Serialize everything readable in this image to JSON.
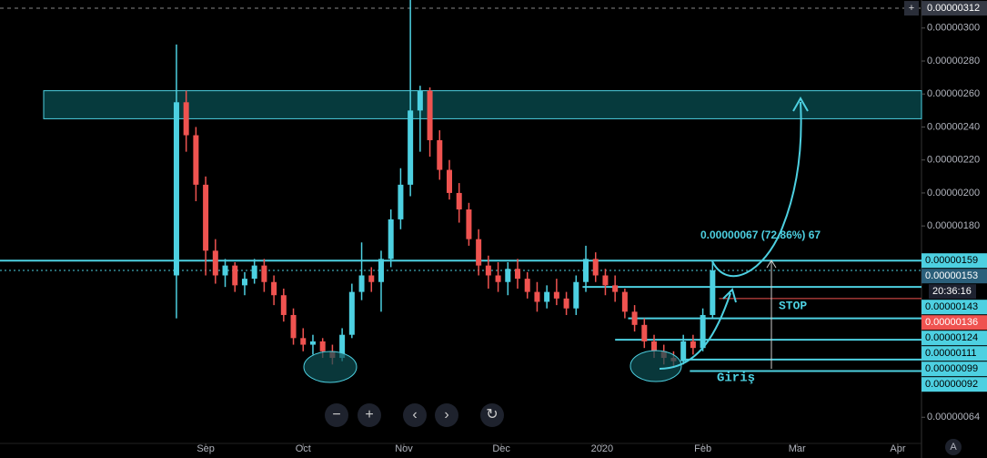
{
  "chart_data": {
    "type": "candlestick",
    "x": [
      22,
      25,
      28,
      31,
      34,
      37,
      40,
      43,
      46,
      49,
      52,
      55,
      58,
      61,
      64,
      67,
      70,
      73,
      76,
      79,
      82,
      85,
      88,
      91,
      94,
      97,
      100,
      103,
      106,
      109,
      112,
      115,
      118,
      121,
      124,
      127,
      130,
      133,
      136,
      139,
      142,
      145,
      148,
      151,
      154,
      157,
      160,
      163,
      166,
      169,
      172,
      175,
      178,
      181,
      184,
      187
    ],
    "open": [
      1.5e-06,
      2.55e-06,
      2.35e-06,
      2.05e-06,
      1.65e-06,
      1.5e-06,
      1.56e-06,
      1.44e-06,
      1.48e-06,
      1.56e-06,
      1.46e-06,
      1.38e-06,
      1.26e-06,
      1.12e-06,
      1.08e-06,
      1.1e-06,
      1.04e-06,
      1e-06,
      1.14e-06,
      1.4e-06,
      1.5e-06,
      1.46e-06,
      1.6e-06,
      1.84e-06,
      2.05e-06,
      2.5e-06,
      2.62e-06,
      2.32e-06,
      2.14e-06,
      2e-06,
      1.9e-06,
      1.72e-06,
      1.56e-06,
      1.5e-06,
      1.46e-06,
      1.54e-06,
      1.48e-06,
      1.4e-06,
      1.34e-06,
      1.4e-06,
      1.36e-06,
      1.3e-06,
      1.46e-06,
      1.6e-06,
      1.5e-06,
      1.44e-06,
      1.4e-06,
      1.28e-06,
      1.2e-06,
      1.1e-06,
      1.04e-06,
      1e-06,
      9.8e-07,
      1.1e-06,
      1.06e-06,
      1.26e-06
    ],
    "high": [
      2.9e-06,
      2.62e-06,
      2.4e-06,
      2.1e-06,
      1.72e-06,
      1.6e-06,
      1.58e-06,
      1.52e-06,
      1.6e-06,
      1.6e-06,
      1.5e-06,
      1.42e-06,
      1.3e-06,
      1.18e-06,
      1.14e-06,
      1.12e-06,
      1.08e-06,
      1.18e-06,
      1.45e-06,
      1.7e-06,
      1.55e-06,
      1.65e-06,
      1.9e-06,
      2.15e-06,
      3.17e-06,
      2.65e-06,
      2.64e-06,
      2.38e-06,
      2.2e-06,
      2.06e-06,
      1.94e-06,
      1.78e-06,
      1.62e-06,
      1.58e-06,
      1.58e-06,
      1.6e-06,
      1.52e-06,
      1.46e-06,
      1.44e-06,
      1.48e-06,
      1.4e-06,
      1.5e-06,
      1.68e-06,
      1.64e-06,
      1.54e-06,
      1.5e-06,
      1.42e-06,
      1.32e-06,
      1.24e-06,
      1.14e-06,
      1.08e-06,
      1.04e-06,
      1.14e-06,
      1.14e-06,
      1.3e-06,
      1.59e-06
    ],
    "low": [
      1.24e-06,
      2.25e-06,
      1.95e-06,
      1.5e-06,
      1.45e-06,
      1.43e-06,
      1.4e-06,
      1.38e-06,
      1.45e-06,
      1.4e-06,
      1.32e-06,
      1.22e-06,
      1.08e-06,
      1.04e-06,
      1.02e-06,
      1e-06,
      9.6e-07,
      9.8e-07,
      1.12e-06,
      1.35e-06,
      1.4e-06,
      1.28e-06,
      1.55e-06,
      1.78e-06,
      1.98e-06,
      2.25e-06,
      2.22e-06,
      2.08e-06,
      1.96e-06,
      1.82e-06,
      1.68e-06,
      1.5e-06,
      1.42e-06,
      1.4e-06,
      1.38e-06,
      1.42e-06,
      1.36e-06,
      1.28e-06,
      1.3e-06,
      1.32e-06,
      1.26e-06,
      1.26e-06,
      1.4e-06,
      1.46e-06,
      1.38e-06,
      1.34e-06,
      1.24e-06,
      1.16e-06,
      1.06e-06,
      1e-06,
      9.6e-07,
      9.4e-07,
      9.6e-07,
      1.02e-06,
      1.04e-06,
      1.24e-06
    ],
    "close": [
      2.55e-06,
      2.35e-06,
      2.05e-06,
      1.65e-06,
      1.5e-06,
      1.56e-06,
      1.44e-06,
      1.48e-06,
      1.56e-06,
      1.46e-06,
      1.38e-06,
      1.26e-06,
      1.12e-06,
      1.08e-06,
      1.1e-06,
      1.04e-06,
      1e-06,
      1.14e-06,
      1.4e-06,
      1.5e-06,
      1.46e-06,
      1.6e-06,
      1.84e-06,
      2.05e-06,
      2.5e-06,
      2.62e-06,
      2.32e-06,
      2.14e-06,
      2e-06,
      1.9e-06,
      1.72e-06,
      1.56e-06,
      1.5e-06,
      1.46e-06,
      1.54e-06,
      1.48e-06,
      1.4e-06,
      1.34e-06,
      1.4e-06,
      1.36e-06,
      1.3e-06,
      1.46e-06,
      1.6e-06,
      1.5e-06,
      1.44e-06,
      1.4e-06,
      1.28e-06,
      1.2e-06,
      1.1e-06,
      1.04e-06,
      1e-06,
      9.8e-07,
      1.1e-06,
      1.06e-06,
      1.26e-06,
      1.53e-06
    ],
    "up_color": "#4dd0e1",
    "down_color": "#ef5350",
    "xlim": [
      -32.3,
      251.3
    ],
    "xticks": [
      {
        "value": 31,
        "label": "Sep"
      },
      {
        "value": 61,
        "label": "Oct"
      },
      {
        "value": 92,
        "label": "Nov"
      },
      {
        "value": 122,
        "label": "Dec"
      },
      {
        "value": 153,
        "label": "2020"
      },
      {
        "value": 184,
        "label": "Feb"
      },
      {
        "value": 213,
        "label": "Mar"
      },
      {
        "value": 244,
        "label": "Apr"
      }
    ],
    "ylim": [
      5.2e-07,
      3.17e-06
    ],
    "yticks": [
      {
        "value": 3e-06,
        "label": "0.00000300"
      },
      {
        "value": 2.8e-06,
        "label": "0.00000280"
      },
      {
        "value": 2.6e-06,
        "label": "0.00000260"
      },
      {
        "value": 2.4e-06,
        "label": "0.00000240"
      },
      {
        "value": 2.2e-06,
        "label": "0.00000220"
      },
      {
        "value": 2e-06,
        "label": "0.00000200"
      },
      {
        "value": 1.8e-06,
        "label": "0.00000180"
      },
      {
        "value": 6.4e-07,
        "label": "0.00000064"
      }
    ],
    "crosshair": {
      "value": 3.12e-06,
      "label": "0.00000312"
    },
    "zone": [
      2.45e-06,
      2.62e-06
    ],
    "price_lines": [
      {
        "value": 1.59e-06,
        "label": "0.00000159",
        "x0": -32.3,
        "color": "#4dd0e1",
        "style": "solid"
      },
      {
        "value": 1.53e-06,
        "label": "0.00000153",
        "x0": -32.3,
        "color": "#4dd0e1",
        "style": "dotted"
      },
      {
        "value": 1.43e-06,
        "label": "0.00000143",
        "x0": 147,
        "color": "#4dd0e1",
        "style": "solid"
      },
      {
        "value": 1.36e-06,
        "label": "0.00000136",
        "x0": 189,
        "color": "#ef5350",
        "style": "thin"
      },
      {
        "value": 1.24e-06,
        "label": "0.00000124",
        "x0": 161,
        "color": "#4dd0e1",
        "style": "solid"
      },
      {
        "value": 1.11e-06,
        "label": "0.00000111",
        "x0": 157,
        "color": "#4dd0e1",
        "style": "solid"
      },
      {
        "value": 9.9e-07,
        "label": "0.00000099",
        "x0": 178,
        "color": "#4dd0e1",
        "style": "solid"
      },
      {
        "value": 9.2e-07,
        "label": "0.00000092",
        "x0": 180,
        "color": "#4dd0e1",
        "style": "solid"
      }
    ],
    "countdown": "20:36:16",
    "annotations": {
      "measure": "0.00000067 (72.86%) 67",
      "stop": "STOP",
      "entry": "Giriş"
    },
    "toolbar": [
      "−",
      "+",
      "‹",
      "›",
      "↻"
    ],
    "corner_button": "A",
    "add_button": "+"
  }
}
